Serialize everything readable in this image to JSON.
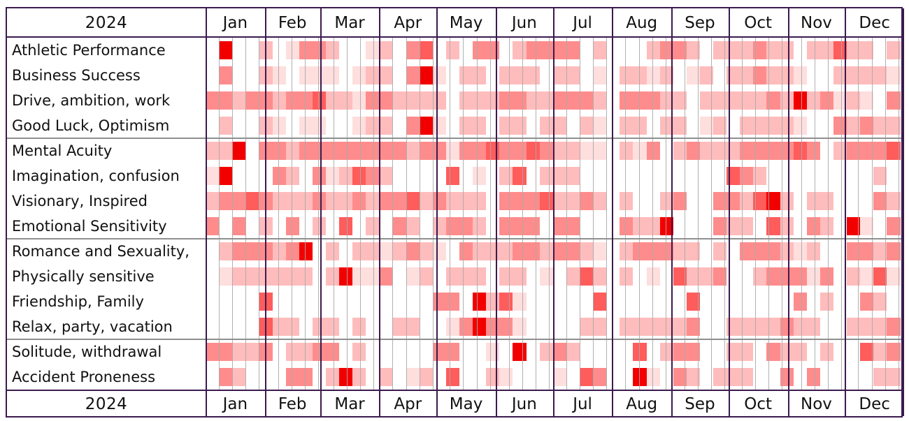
{
  "year": "2024",
  "months": [
    "Jan",
    "Feb",
    "Mar",
    "Apr",
    "May",
    "Jun",
    "Jul",
    "Aug",
    "Sep",
    "Oct",
    "Nov",
    "Dec"
  ],
  "colors": {
    "frame_border": "#3c1a4d",
    "week_gridline": "#a8a8a8",
    "group_separator": "#8f8f8f",
    "text": "#111111"
  },
  "chart_data": {
    "type": "heatmap",
    "title": "2024 yearly condition calendar",
    "year": "2024",
    "x": "weeks of the year (columns grouped by month, weekly gridlines)",
    "unit": "intensity level 0 (blank) to 5 (peak red)",
    "weeks_per_row": 52,
    "month_days": [
      31,
      29,
      31,
      30,
      31,
      30,
      31,
      31,
      30,
      31,
      30,
      31
    ],
    "palette": {
      "1": "#ffdede",
      "2": "#ffbcbc",
      "3": "#ff8c8c",
      "4": "#ff5c5c",
      "5": "#f20000"
    },
    "legend_position": "none",
    "row_groups_end_after": [
      3,
      7,
      11
    ],
    "categories": [
      "Athletic Performance",
      "Business Success",
      "Drive, ambition, work",
      "Good Luck, Optimism",
      "Mental Acuity",
      "Imagination, confusion",
      "Visionary, Inspired",
      "Emotional Sensitivity",
      "Romance and Sexuality,",
      "Physically sensitive",
      "Friendship, Family",
      "Relax, party, vacation",
      "Solitude, withdrawal",
      "Accident Proneness"
    ],
    "rows": [
      {
        "label": "Athletic Performance",
        "weeks": [
          0,
          5,
          0,
          0,
          2,
          0,
          1,
          3,
          3,
          2,
          0,
          0,
          1,
          2,
          0,
          3,
          4,
          0,
          2,
          0,
          3,
          3,
          0,
          2,
          3,
          3,
          3,
          3,
          0,
          2,
          0,
          0,
          0,
          2,
          3,
          3,
          2,
          0,
          2,
          2,
          2,
          3,
          2,
          2,
          0,
          2,
          2,
          4,
          2,
          2,
          0,
          2
        ]
      },
      {
        "label": "Business Success",
        "weeks": [
          0,
          3,
          0,
          0,
          2,
          1,
          0,
          1,
          1,
          1,
          0,
          1,
          2,
          2,
          0,
          3,
          5,
          1,
          0,
          2,
          2,
          0,
          2,
          2,
          2,
          0,
          2,
          2,
          0,
          1,
          0,
          2,
          2,
          1,
          2,
          0,
          1,
          2,
          0,
          2,
          2,
          3,
          2,
          2,
          1,
          0,
          0,
          2,
          2,
          2,
          2,
          1
        ]
      },
      {
        "label": "Drive, ambition, work",
        "weeks": [
          3,
          3,
          2,
          3,
          3,
          2,
          3,
          3,
          4,
          2,
          2,
          1,
          3,
          3,
          2,
          2,
          2,
          2,
          0,
          2,
          2,
          2,
          3,
          3,
          2,
          2,
          3,
          3,
          3,
          2,
          0,
          3,
          3,
          3,
          2,
          2,
          0,
          2,
          2,
          2,
          2,
          2,
          3,
          2,
          5,
          2,
          3,
          1,
          2,
          1,
          0,
          3
        ]
      },
      {
        "label": "Good Luck, Optimism",
        "weeks": [
          0,
          2,
          0,
          0,
          2,
          1,
          0,
          1,
          1,
          0,
          0,
          1,
          2,
          2,
          0,
          3,
          5,
          1,
          0,
          2,
          2,
          0,
          2,
          2,
          0,
          2,
          2,
          0,
          2,
          1,
          0,
          2,
          2,
          0,
          2,
          2,
          0,
          1,
          2,
          0,
          2,
          2,
          2,
          2,
          1,
          0,
          0,
          3,
          2,
          3,
          2,
          2
        ]
      },
      {
        "label": "Mental Acuity",
        "weeks": [
          2,
          2,
          5,
          0,
          3,
          3,
          2,
          3,
          3,
          3,
          3,
          3,
          3,
          3,
          3,
          2,
          3,
          3,
          1,
          3,
          3,
          4,
          3,
          3,
          4,
          3,
          2,
          2,
          1,
          1,
          0,
          2,
          1,
          3,
          0,
          2,
          3,
          2,
          2,
          2,
          3,
          3,
          3,
          3,
          4,
          3,
          0,
          2,
          3,
          3,
          3,
          4
        ]
      },
      {
        "label": "Imagination, confusion",
        "weeks": [
          1,
          5,
          0,
          0,
          0,
          3,
          2,
          0,
          3,
          1,
          2,
          4,
          3,
          2,
          0,
          0,
          0,
          0,
          4,
          0,
          1,
          0,
          2,
          4,
          0,
          2,
          2,
          2,
          0,
          0,
          0,
          0,
          0,
          0,
          0,
          0,
          0,
          0,
          0,
          4,
          3,
          2,
          0,
          0,
          0,
          0,
          0,
          0,
          0,
          0,
          2,
          0
        ]
      },
      {
        "label": "Visionary, Inspired",
        "weeks": [
          2,
          3,
          3,
          4,
          3,
          2,
          2,
          2,
          3,
          2,
          2,
          3,
          2,
          3,
          3,
          4,
          2,
          3,
          2,
          2,
          2,
          0,
          3,
          3,
          3,
          4,
          2,
          2,
          3,
          2,
          0,
          2,
          0,
          0,
          2,
          3,
          0,
          0,
          3,
          3,
          2,
          4,
          5,
          2,
          0,
          2,
          2,
          0,
          0,
          0,
          3,
          2
        ]
      },
      {
        "label": "Emotional Sensitivity",
        "weeks": [
          3,
          0,
          3,
          0,
          2,
          0,
          3,
          0,
          2,
          0,
          4,
          0,
          2,
          0,
          3,
          2,
          0,
          2,
          3,
          3,
          2,
          0,
          3,
          3,
          3,
          0,
          3,
          3,
          0,
          0,
          0,
          3,
          2,
          2,
          5,
          0,
          0,
          0,
          3,
          2,
          2,
          0,
          4,
          2,
          0,
          3,
          2,
          0,
          5,
          1,
          0,
          3
        ]
      },
      {
        "label": "Romance and Sexuality,",
        "weeks": [
          0,
          2,
          3,
          3,
          3,
          2,
          3,
          5,
          0,
          2,
          0,
          2,
          2,
          1,
          2,
          3,
          2,
          1,
          0,
          3,
          2,
          2,
          2,
          3,
          3,
          2,
          3,
          3,
          2,
          1,
          0,
          2,
          3,
          3,
          3,
          2,
          2,
          0,
          2,
          0,
          3,
          3,
          3,
          2,
          1,
          2,
          0,
          0,
          3,
          3,
          2,
          3
        ]
      },
      {
        "label": "Physically sensitive",
        "weeks": [
          0,
          1,
          2,
          2,
          2,
          2,
          2,
          2,
          0,
          2,
          5,
          1,
          1,
          3,
          0,
          1,
          2,
          0,
          2,
          2,
          2,
          0,
          2,
          2,
          0,
          1,
          0,
          2,
          4,
          2,
          0,
          2,
          0,
          1,
          0,
          4,
          2,
          2,
          3,
          0,
          0,
          2,
          3,
          3,
          3,
          1,
          3,
          0,
          2,
          1,
          4,
          1
        ]
      },
      {
        "label": "Friendship, Family",
        "weeks": [
          0,
          0,
          0,
          0,
          4,
          0,
          0,
          0,
          0,
          0,
          0,
          0,
          0,
          0,
          0,
          0,
          0,
          3,
          3,
          0,
          5,
          2,
          4,
          1,
          0,
          0,
          0,
          0,
          0,
          4,
          0,
          0,
          0,
          0,
          0,
          0,
          4,
          0,
          0,
          0,
          0,
          0,
          0,
          0,
          3,
          0,
          2,
          0,
          0,
          3,
          2,
          0
        ]
      },
      {
        "label": "Relax, party, vacation",
        "weeks": [
          0,
          0,
          0,
          0,
          4,
          2,
          2,
          0,
          2,
          2,
          0,
          2,
          0,
          0,
          2,
          2,
          0,
          0,
          1,
          3,
          5,
          3,
          3,
          1,
          0,
          0,
          0,
          0,
          2,
          2,
          0,
          2,
          2,
          2,
          2,
          2,
          3,
          0,
          0,
          2,
          2,
          2,
          2,
          3,
          2,
          2,
          0,
          0,
          2,
          2,
          2,
          3
        ]
      },
      {
        "label": "Solitude, withdrawal",
        "weeks": [
          3,
          3,
          2,
          2,
          3,
          0,
          2,
          2,
          3,
          3,
          0,
          2,
          0,
          0,
          0,
          0,
          0,
          3,
          3,
          0,
          0,
          1,
          0,
          5,
          0,
          2,
          3,
          2,
          0,
          0,
          0,
          0,
          4,
          0,
          2,
          3,
          3,
          0,
          0,
          2,
          2,
          0,
          3,
          2,
          2,
          0,
          2,
          0,
          0,
          4,
          2,
          3
        ]
      },
      {
        "label": "Accident Proneness",
        "weeks": [
          0,
          3,
          2,
          0,
          0,
          0,
          3,
          3,
          0,
          2,
          5,
          2,
          0,
          2,
          0,
          1,
          2,
          0,
          4,
          0,
          0,
          2,
          1,
          0,
          0,
          0,
          1,
          0,
          4,
          3,
          0,
          0,
          5,
          1,
          0,
          3,
          2,
          0,
          2,
          2,
          2,
          0,
          0,
          3,
          0,
          3,
          0,
          0,
          0,
          0,
          2,
          2
        ]
      }
    ]
  }
}
